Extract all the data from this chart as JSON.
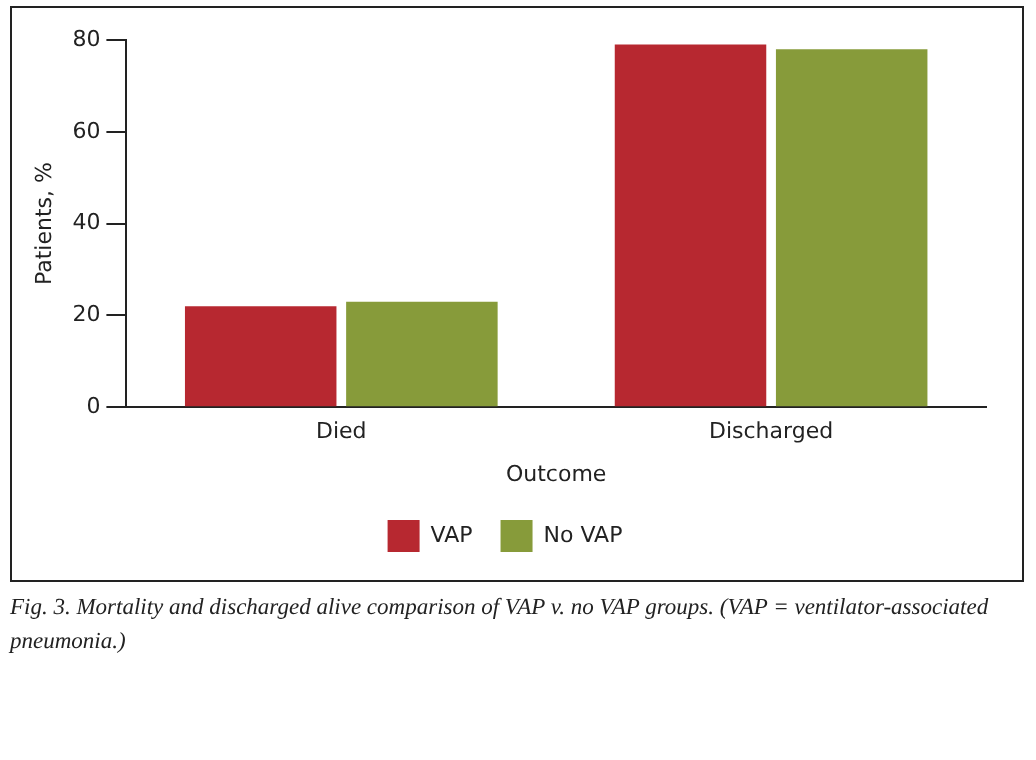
{
  "chart_data": {
    "type": "bar",
    "xlabel": "Outcome",
    "ylabel": "Patients, %",
    "categories": [
      "Died",
      "Discharged"
    ],
    "series": [
      {
        "name": "VAP",
        "color": "#b72830",
        "values": [
          22,
          79
        ]
      },
      {
        "name": "No VAP",
        "color": "#879b3a",
        "values": [
          23,
          78
        ]
      }
    ],
    "ylim": [
      0,
      80
    ],
    "yticks": [
      0,
      20,
      40,
      60,
      80
    ],
    "grid": false,
    "legend": "bottom",
    "annotations": [
      "Fig. 3. Mortality and discharged alive comparison of VAP v. no VAP groups. (VAP = ventilator-associated pneumonia.)"
    ]
  }
}
